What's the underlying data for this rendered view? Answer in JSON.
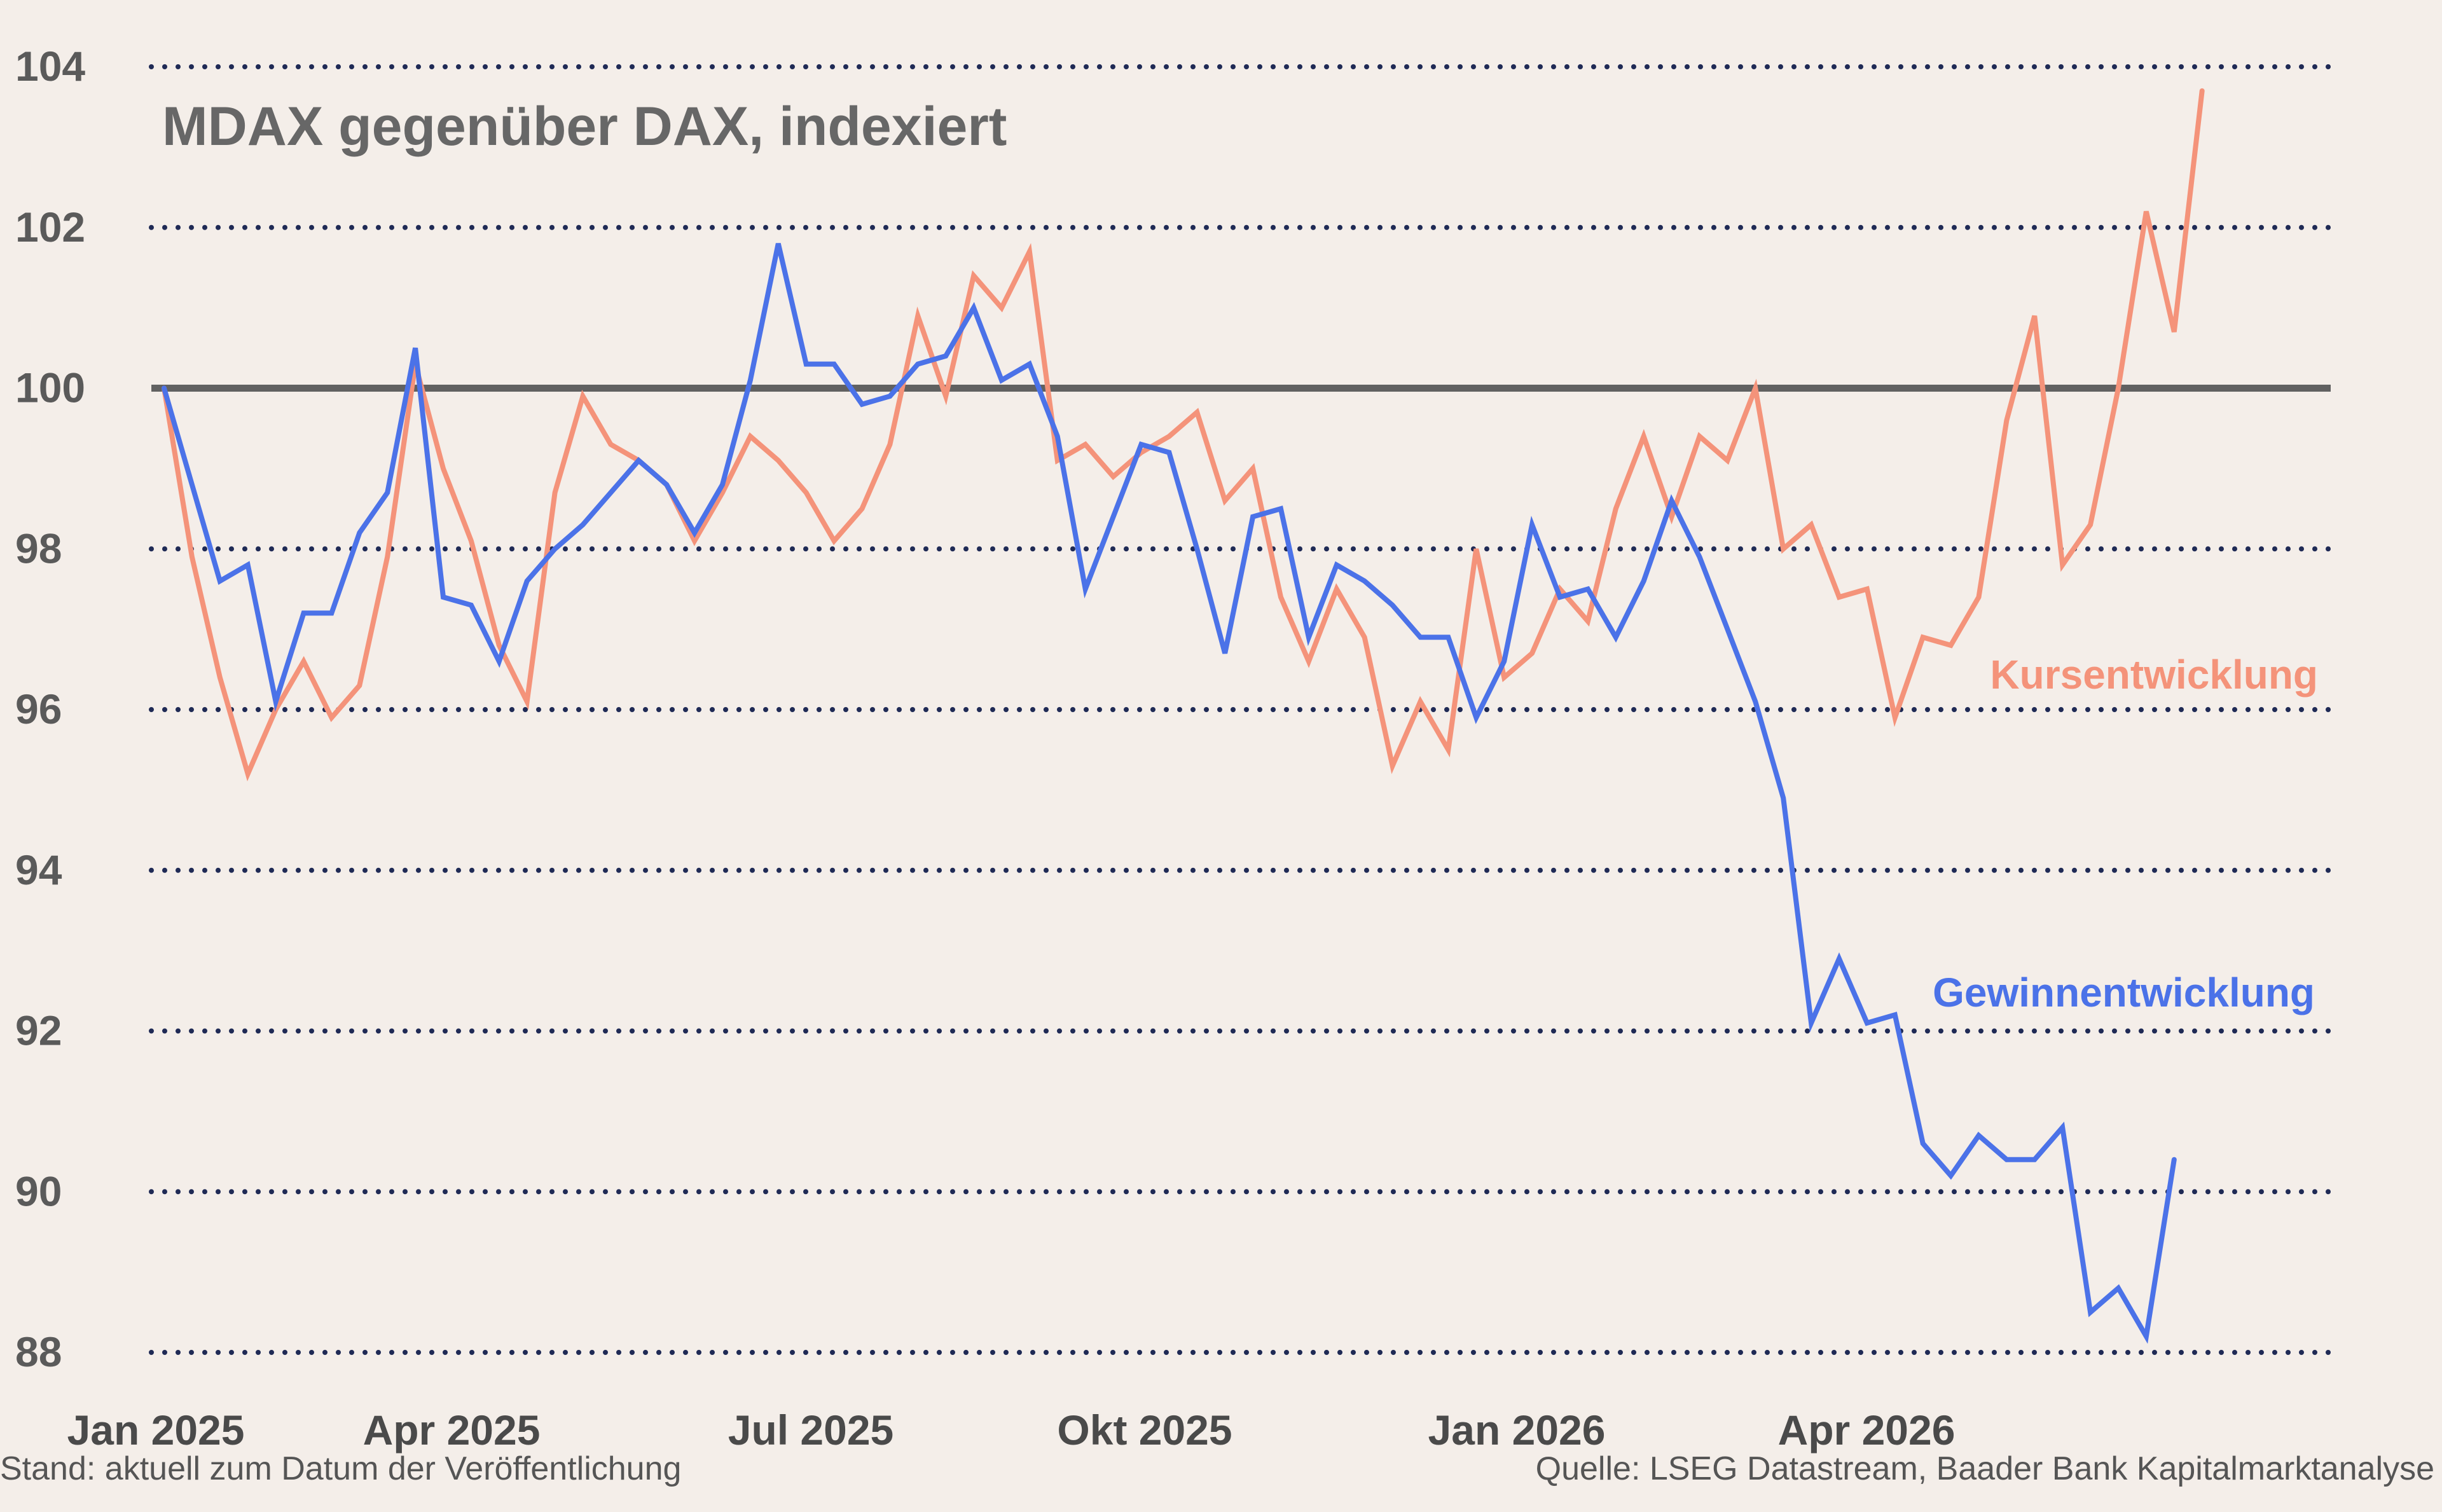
{
  "chart_data": {
    "type": "line",
    "title": "MDAX gegenüber DAX, indexiert",
    "ylim": [
      88,
      104
    ],
    "yticks": [
      88,
      90,
      92,
      94,
      96,
      98,
      100,
      102,
      104
    ],
    "ytick_labels": [
      "88",
      "90",
      "92",
      "94",
      "96",
      "98",
      "100",
      "102",
      "104"
    ],
    "xticks": [
      "Jan 2025",
      "Apr 2025",
      "Jul 2025",
      "Okt 2025",
      "Jan 2026",
      "Apr 2026"
    ],
    "reference_line": 100,
    "grid": true,
    "grid_style": "dotted",
    "series": [
      {
        "name": "Kursentwicklung",
        "color": "#f4937a",
        "values": [
          100,
          97.9,
          96.4,
          95.2,
          96.0,
          96.6,
          95.9,
          96.3,
          97.9,
          100.3,
          99.0,
          98.1,
          96.8,
          96.1,
          98.7,
          99.9,
          99.3,
          99.1,
          98.8,
          98.1,
          98.7,
          99.4,
          99.1,
          98.7,
          98.1,
          98.5,
          99.3,
          100.9,
          99.9,
          101.4,
          101.0,
          101.7,
          99.1,
          99.3,
          98.9,
          99.2,
          99.4,
          99.7,
          98.6,
          99.0,
          97.4,
          96.6,
          97.5,
          96.9,
          95.3,
          96.1,
          95.5,
          98.0,
          96.4,
          96.7,
          97.5,
          97.1,
          98.5,
          99.4,
          98.4,
          99.4,
          99.1,
          100.0,
          98.0,
          98.3,
          97.4,
          97.5,
          95.9,
          96.9,
          96.8,
          97.4,
          99.6,
          100.9,
          97.8,
          98.3,
          100.0,
          102.2,
          100.7,
          103.7
        ]
      },
      {
        "name": "Gewinnentwicklung",
        "color": "#4b72e8",
        "values": [
          100,
          98.8,
          97.6,
          97.8,
          96.1,
          97.2,
          97.2,
          98.2,
          98.7,
          100.5,
          97.4,
          97.3,
          96.6,
          97.6,
          98.0,
          98.3,
          98.7,
          99.1,
          98.8,
          98.2,
          98.8,
          100.1,
          101.8,
          100.3,
          100.3,
          99.8,
          99.9,
          100.3,
          100.4,
          101.0,
          100.1,
          100.3,
          99.4,
          97.5,
          98.4,
          99.3,
          99.2,
          98.0,
          96.7,
          98.4,
          98.5,
          96.9,
          97.8,
          97.6,
          97.3,
          96.9,
          96.9,
          95.9,
          96.6,
          98.3,
          97.4,
          97.5,
          96.9,
          97.6,
          98.6,
          97.9,
          97.0,
          96.1,
          94.9,
          92.1,
          92.9,
          92.1,
          92.2,
          90.6,
          90.2,
          90.7,
          90.4,
          90.4,
          90.8,
          88.5,
          88.8,
          88.2,
          90.4
        ]
      }
    ],
    "footnote_left": "Stand: aktuell zum Datum der Veröffentlichung",
    "footnote_right": "Quelle: LSEG Datastream, Baader Bank Kapitalmarktanalyse"
  }
}
